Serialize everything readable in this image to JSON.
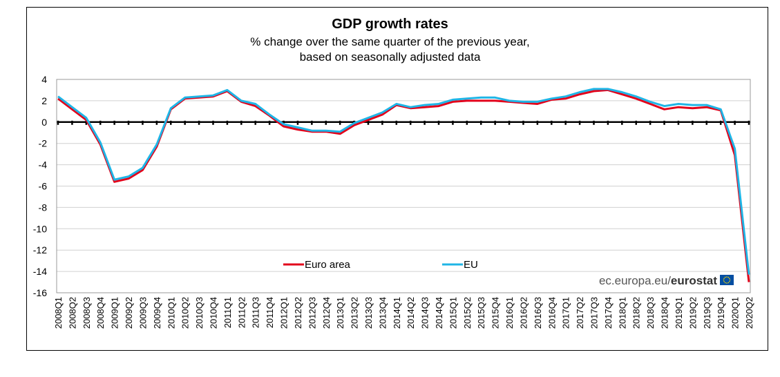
{
  "chart_data": {
    "type": "line",
    "title": "GDP growth rates",
    "subtitle_line1": "% change over the same quarter of the previous year,",
    "subtitle_line2": "based on seasonally adjusted data",
    "categories": [
      "2008Q1",
      "2008Q2",
      "2008Q3",
      "2008Q4",
      "2009Q1",
      "2009Q2",
      "2009Q3",
      "2009Q4",
      "2010Q1",
      "2010Q2",
      "2010Q3",
      "2010Q4",
      "2011Q1",
      "2011Q2",
      "2011Q3",
      "2011Q4",
      "2012Q1",
      "2012Q2",
      "2012Q3",
      "2012Q4",
      "2013Q1",
      "2013Q2",
      "2013Q3",
      "2013Q4",
      "2014Q1",
      "2014Q2",
      "2014Q3",
      "2014Q4",
      "2015Q1",
      "2015Q2",
      "2015Q3",
      "2015Q4",
      "2016Q1",
      "2016Q2",
      "2016Q3",
      "2016Q4",
      "2017Q1",
      "2017Q2",
      "2017Q3",
      "2017Q4",
      "2018Q1",
      "2018Q2",
      "2018Q3",
      "2018Q4",
      "2019Q1",
      "2019Q2",
      "2019Q3",
      "2019Q4",
      "2020Q1",
      "2020Q2"
    ],
    "series": [
      {
        "name": "Euro area",
        "color": "#e2001a",
        "values": [
          2.2,
          1.2,
          0.2,
          -2.1,
          -5.6,
          -5.3,
          -4.5,
          -2.3,
          1.2,
          2.2,
          2.3,
          2.4,
          2.9,
          1.9,
          1.5,
          0.6,
          -0.4,
          -0.7,
          -0.9,
          -0.9,
          -1.1,
          -0.3,
          0.2,
          0.7,
          1.6,
          1.3,
          1.4,
          1.5,
          1.9,
          2.0,
          2.0,
          2.0,
          1.9,
          1.8,
          1.7,
          2.1,
          2.2,
          2.6,
          2.9,
          3.0,
          2.6,
          2.2,
          1.7,
          1.2,
          1.4,
          1.3,
          1.4,
          1.1,
          -3.1,
          -15.0
        ]
      },
      {
        "name": "EU",
        "color": "#1fb5e6",
        "values": [
          2.4,
          1.4,
          0.4,
          -1.9,
          -5.4,
          -5.1,
          -4.3,
          -2.1,
          1.3,
          2.3,
          2.4,
          2.5,
          3.0,
          2.0,
          1.7,
          0.7,
          -0.2,
          -0.5,
          -0.8,
          -0.8,
          -0.9,
          -0.1,
          0.4,
          0.9,
          1.7,
          1.4,
          1.6,
          1.7,
          2.1,
          2.2,
          2.3,
          2.3,
          2.0,
          1.9,
          1.9,
          2.2,
          2.4,
          2.8,
          3.1,
          3.1,
          2.8,
          2.4,
          1.9,
          1.5,
          1.7,
          1.6,
          1.6,
          1.2,
          -2.5,
          -14.3
        ]
      }
    ],
    "ylim": [
      -16,
      4
    ],
    "yticks": [
      4,
      2,
      0,
      -2,
      -4,
      -6,
      -8,
      -10,
      -12,
      -14,
      -16
    ],
    "grid": true,
    "legend_position": "bottom-center inside plot",
    "zero_line_style": "dashed black"
  },
  "source_text": "ec.europa.eu/",
  "source_brand": "eurostat"
}
